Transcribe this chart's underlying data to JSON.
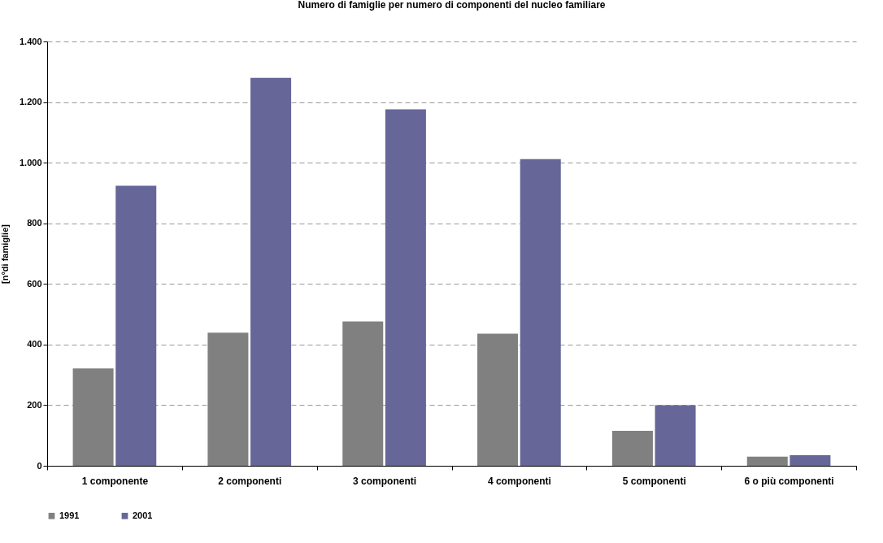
{
  "chart_data": {
    "type": "bar",
    "title": "Numero di famiglie per numero di componenti del nucleo familiare",
    "ylabel": "[n°di famiglie]",
    "categories": [
      "1 componente",
      "2 componenti",
      "3 componenti",
      "4 componenti",
      "5 componenti",
      "6 o più componenti"
    ],
    "series": [
      {
        "name": "1991",
        "color": "#808080",
        "values": [
          321,
          439,
          476,
          436,
          115,
          30
        ]
      },
      {
        "name": "2001",
        "color": "#666699",
        "values": [
          924,
          1280,
          1176,
          1012,
          200,
          35
        ]
      }
    ],
    "ylim": [
      0,
      1400
    ],
    "yticks": [
      0,
      {
        "value": 200,
        "label": "200"
      },
      {
        "value": 400,
        "label": "400"
      },
      {
        "value": 600,
        "label": "600"
      },
      {
        "value": 800,
        "label": "800"
      },
      {
        "value": 1000,
        "label": "1.000"
      },
      {
        "value": 1200,
        "label": "1.200"
      },
      {
        "value": 1400,
        "label": "1.400"
      }
    ],
    "grid": "y",
    "legend": "bottom"
  }
}
